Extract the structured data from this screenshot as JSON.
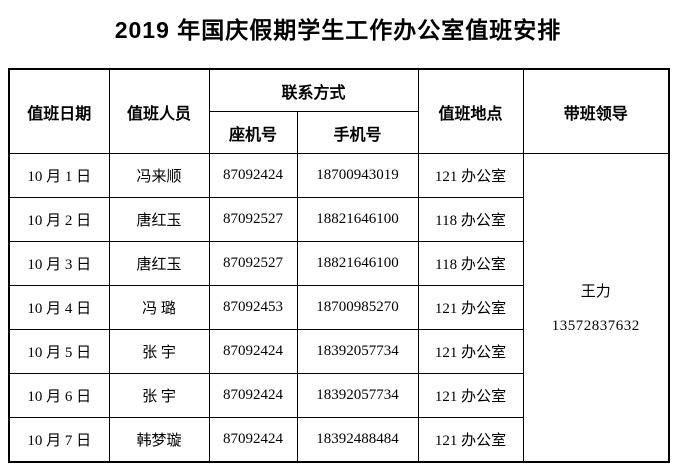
{
  "title": "2019 年国庆假期学生工作办公室值班安排",
  "table": {
    "headers": {
      "duty_date": "值班日期",
      "duty_person": "值班人员",
      "contact": "联系方式",
      "landline": "座机号",
      "mobile": "手机号",
      "duty_location": "值班地点",
      "leader": "带班领导"
    },
    "rows": [
      {
        "date": "10 月 1 日",
        "person": "冯来顺",
        "landline": "87092424",
        "mobile": "18700943019",
        "location": "121 办公室"
      },
      {
        "date": "10 月 2 日",
        "person": "唐红玉",
        "landline": "87092527",
        "mobile": "18821646100",
        "location": "118 办公室"
      },
      {
        "date": "10 月 3 日",
        "person": "唐红玉",
        "landline": "87092527",
        "mobile": "18821646100",
        "location": "118 办公室"
      },
      {
        "date": "10 月 4 日",
        "person": "冯 璐",
        "landline": "87092453",
        "mobile": "18700985270",
        "location": "121 办公室"
      },
      {
        "date": "10 月 5 日",
        "person": "张 宇",
        "landline": "87092424",
        "mobile": "18392057734",
        "location": "121 办公室"
      },
      {
        "date": "10 月 6 日",
        "person": "张 宇",
        "landline": "87092424",
        "mobile": "18392057734",
        "location": "121 办公室"
      },
      {
        "date": "10 月 7 日",
        "person": "韩梦璇",
        "landline": "87092424",
        "mobile": "18392488484",
        "location": "121 办公室"
      }
    ],
    "leader": {
      "name": "王力",
      "phone": "13572837632"
    }
  },
  "colors": {
    "background": "#ffffff",
    "text": "#000000",
    "border": "#000000"
  }
}
